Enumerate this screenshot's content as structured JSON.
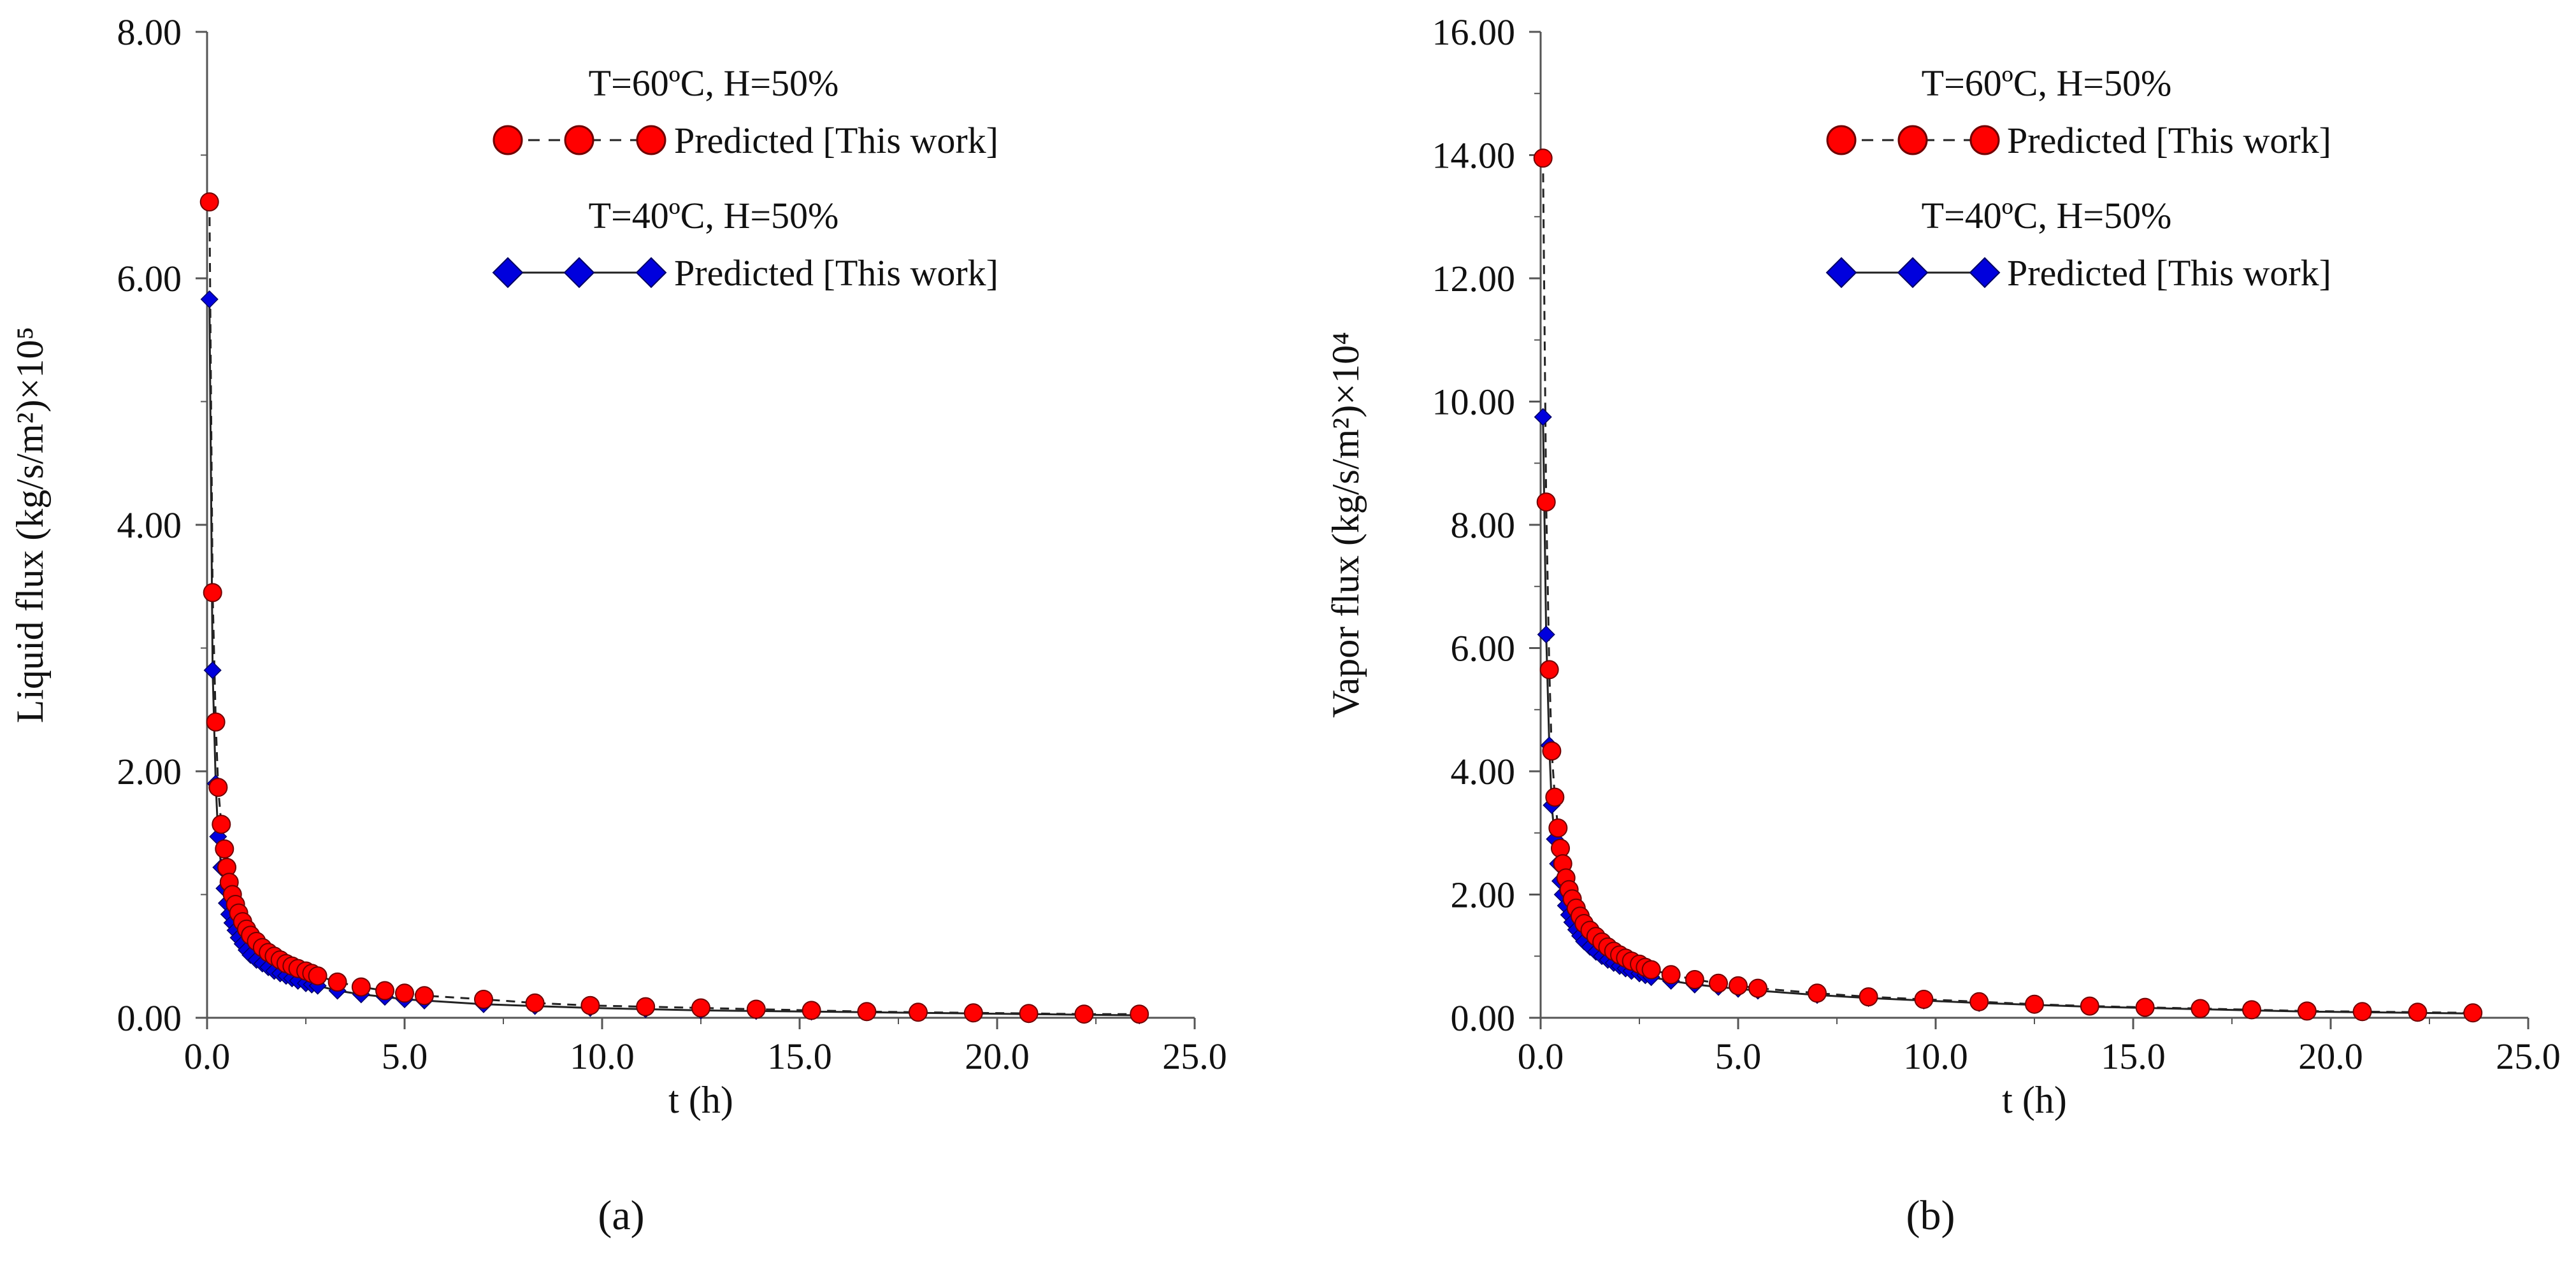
{
  "figure": {
    "panels": [
      "(a)",
      "(b)"
    ]
  },
  "chart_data": [
    {
      "type": "line",
      "panel_label": "a",
      "xlabel": "t (h)",
      "ylabel": "Liquid flux (kg/s/m²)×10⁵",
      "xlim": [
        0,
        25
      ],
      "ylim": [
        0,
        8
      ],
      "xticks": [
        "0.0",
        "5.0",
        "10.0",
        "15.0",
        "20.0",
        "25.0"
      ],
      "yticks": [
        "0.00",
        "2.00",
        "4.00",
        "6.00",
        "8.00"
      ],
      "legend": [
        {
          "title": "T=60ºC, H=50%",
          "label": "Predicted [This work]",
          "marker": "circle",
          "line": "dashed",
          "color": "#ff0000"
        },
        {
          "title": "T=40ºC, H=50%",
          "label": "Predicted [This work]",
          "marker": "diamond",
          "line": "solid",
          "color": "#0000dd"
        }
      ],
      "series": [
        {
          "name": "T=60ºC, H=50%",
          "x": [
            0.06,
            0.14,
            0.22,
            0.28,
            0.36,
            0.44,
            0.5,
            0.56,
            0.64,
            0.72,
            0.8,
            0.9,
            1.0,
            1.1,
            1.25,
            1.4,
            1.55,
            1.7,
            1.85,
            2.0,
            2.15,
            2.3,
            2.5,
            2.65,
            2.8,
            3.3,
            3.9,
            4.5,
            5.0,
            5.5,
            7.0,
            8.3,
            9.7,
            11.1,
            12.5,
            13.9,
            15.3,
            16.7,
            18.0,
            19.4,
            20.8,
            22.2,
            23.6
          ],
          "y": [
            6.62,
            3.45,
            2.4,
            1.87,
            1.57,
            1.37,
            1.22,
            1.1,
            1.0,
            0.92,
            0.85,
            0.78,
            0.72,
            0.67,
            0.62,
            0.57,
            0.53,
            0.5,
            0.47,
            0.44,
            0.42,
            0.4,
            0.38,
            0.36,
            0.34,
            0.29,
            0.25,
            0.22,
            0.2,
            0.18,
            0.15,
            0.12,
            0.1,
            0.09,
            0.08,
            0.07,
            0.06,
            0.05,
            0.045,
            0.04,
            0.035,
            0.03,
            0.03
          ]
        },
        {
          "name": "T=40ºC, H=50%",
          "x": [
            0.06,
            0.14,
            0.22,
            0.28,
            0.36,
            0.44,
            0.5,
            0.56,
            0.64,
            0.72,
            0.8,
            0.9,
            1.0,
            1.1,
            1.25,
            1.4,
            1.55,
            1.7,
            1.85,
            2.0,
            2.15,
            2.3,
            2.5,
            2.65,
            2.8,
            3.3,
            3.9,
            4.5,
            5.0,
            5.5,
            7.0,
            8.3,
            9.7,
            11.1,
            12.5,
            13.9,
            15.3,
            16.7,
            18.0,
            19.4,
            20.8,
            22.2,
            23.6
          ],
          "y": [
            5.83,
            2.82,
            1.9,
            1.47,
            1.22,
            1.05,
            0.93,
            0.84,
            0.77,
            0.71,
            0.65,
            0.6,
            0.55,
            0.51,
            0.47,
            0.44,
            0.41,
            0.38,
            0.36,
            0.34,
            0.32,
            0.3,
            0.28,
            0.27,
            0.26,
            0.22,
            0.19,
            0.17,
            0.15,
            0.14,
            0.11,
            0.095,
            0.08,
            0.07,
            0.06,
            0.055,
            0.05,
            0.045,
            0.04,
            0.035,
            0.03,
            0.025,
            0.02
          ]
        }
      ]
    },
    {
      "type": "line",
      "panel_label": "b",
      "xlabel": "t (h)",
      "ylabel": "Vapor flux (kg/s/m²)×10⁴",
      "xlim": [
        0,
        25
      ],
      "ylim": [
        0,
        16
      ],
      "xticks": [
        "0.0",
        "5.0",
        "10.0",
        "15.0",
        "20.0",
        "25.0"
      ],
      "yticks": [
        "0.00",
        "2.00",
        "4.00",
        "6.00",
        "8.00",
        "10.00",
        "12.00",
        "14.00",
        "16.00"
      ],
      "legend": [
        {
          "title": "T=60ºC, H=50%",
          "label": "Predicted [This work]",
          "marker": "circle",
          "line": "dashed",
          "color": "#ff0000"
        },
        {
          "title": "T=40ºC, H=50%",
          "label": "Predicted [This work]",
          "marker": "diamond",
          "line": "solid",
          "color": "#0000dd"
        }
      ],
      "series": [
        {
          "name": "T=60ºC, H=50%",
          "x": [
            0.06,
            0.14,
            0.22,
            0.28,
            0.36,
            0.44,
            0.5,
            0.56,
            0.64,
            0.72,
            0.8,
            0.9,
            1.0,
            1.1,
            1.25,
            1.4,
            1.55,
            1.7,
            1.85,
            2.0,
            2.15,
            2.3,
            2.5,
            2.65,
            2.8,
            3.3,
            3.9,
            4.5,
            5.0,
            5.5,
            7.0,
            8.3,
            9.7,
            11.1,
            12.5,
            13.9,
            15.3,
            16.7,
            18.0,
            19.4,
            20.8,
            22.2,
            23.6
          ],
          "y": [
            13.95,
            8.37,
            5.65,
            4.33,
            3.58,
            3.08,
            2.75,
            2.5,
            2.27,
            2.08,
            1.93,
            1.78,
            1.65,
            1.53,
            1.42,
            1.32,
            1.23,
            1.15,
            1.08,
            1.02,
            0.97,
            0.92,
            0.87,
            0.82,
            0.78,
            0.7,
            0.62,
            0.56,
            0.52,
            0.48,
            0.4,
            0.34,
            0.3,
            0.26,
            0.22,
            0.19,
            0.17,
            0.15,
            0.13,
            0.11,
            0.1,
            0.09,
            0.08
          ]
        },
        {
          "name": "T=40ºC, H=50%",
          "x": [
            0.06,
            0.14,
            0.22,
            0.28,
            0.36,
            0.44,
            0.5,
            0.56,
            0.64,
            0.72,
            0.8,
            0.9,
            1.0,
            1.1,
            1.25,
            1.4,
            1.55,
            1.7,
            1.85,
            2.0,
            2.15,
            2.3,
            2.5,
            2.65,
            2.8,
            3.3,
            3.9,
            4.5,
            5.0,
            5.5,
            7.0,
            8.3,
            9.7,
            11.1,
            12.5,
            13.9,
            15.3,
            16.7,
            18.0,
            19.4,
            20.8,
            22.2,
            23.6
          ],
          "y": [
            9.75,
            6.22,
            4.42,
            3.45,
            2.9,
            2.5,
            2.22,
            2.0,
            1.82,
            1.67,
            1.55,
            1.43,
            1.33,
            1.24,
            1.15,
            1.07,
            1.0,
            0.94,
            0.89,
            0.84,
            0.8,
            0.76,
            0.72,
            0.69,
            0.66,
            0.6,
            0.54,
            0.5,
            0.47,
            0.44,
            0.37,
            0.32,
            0.28,
            0.24,
            0.21,
            0.18,
            0.16,
            0.14,
            0.12,
            0.1,
            0.09,
            0.08,
            0.07
          ]
        }
      ]
    }
  ]
}
